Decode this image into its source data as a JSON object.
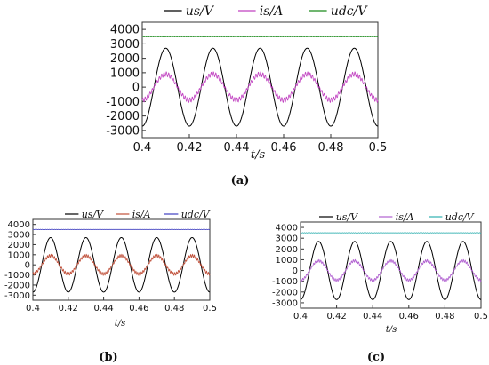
{
  "chart_data": [
    {
      "type": "line",
      "panel_label": "(a)",
      "xlabel": "t/s",
      "xlim": [
        0.4,
        0.5
      ],
      "ylim": [
        -3500,
        4500
      ],
      "x_ticks": [
        "0.4",
        "0.42",
        "0.44",
        "0.46",
        "0.48",
        "0.5"
      ],
      "y_ticks": [
        "-3000",
        "-2000",
        "-1000",
        "0",
        "1000",
        "2000",
        "3000",
        "4000"
      ],
      "legend": "top",
      "series": [
        {
          "name": "us/V",
          "color": "#000000",
          "kind": "sine",
          "amplitude": 2700,
          "frequency_hz": 50,
          "phase_deg": -90,
          "offset": 0
        },
        {
          "name": "is/A",
          "color": "#c040c0",
          "kind": "sine_ripple",
          "amplitude": 900,
          "frequency_hz": 50,
          "phase_deg": -90,
          "offset": 0,
          "ripple": 160
        },
        {
          "name": "udc/V",
          "color": "#1a8a1a",
          "kind": "dc",
          "offset": 3500,
          "ripple": 20
        }
      ]
    },
    {
      "type": "line",
      "panel_label": "(b)",
      "xlabel": "t/s",
      "xlim": [
        0.4,
        0.5
      ],
      "ylim": [
        -3500,
        4500
      ],
      "x_ticks": [
        "0.4",
        "0.42",
        "0.44",
        "0.46",
        "0.48",
        "0.5"
      ],
      "y_ticks": [
        "-3000",
        "-2000",
        "-1000",
        "0",
        "1000",
        "2000",
        "3000",
        "4000"
      ],
      "legend": "top",
      "series": [
        {
          "name": "us/V",
          "color": "#000000",
          "kind": "sine",
          "amplitude": 2700,
          "frequency_hz": 50,
          "phase_deg": -90,
          "offset": 0
        },
        {
          "name": "is/A",
          "color": "#c0503a",
          "kind": "sine_ripple",
          "amplitude": 900,
          "frequency_hz": 50,
          "phase_deg": -90,
          "offset": 0,
          "ripple": 150
        },
        {
          "name": "udc/V",
          "color": "#4040c0",
          "kind": "dc",
          "offset": 3500,
          "ripple": 20
        }
      ]
    },
    {
      "type": "line",
      "panel_label": "(c)",
      "xlabel": "t/s",
      "xlim": [
        0.4,
        0.5
      ],
      "ylim": [
        -3500,
        4500
      ],
      "x_ticks": [
        "0.4",
        "0.42",
        "0.44",
        "0.46",
        "0.48",
        "0.5"
      ],
      "y_ticks": [
        "-3000",
        "-2000",
        "-1000",
        "0",
        "1000",
        "2000",
        "3000",
        "4000"
      ],
      "legend": "top",
      "series": [
        {
          "name": "us/V",
          "color": "#000000",
          "kind": "sine",
          "amplitude": 2700,
          "frequency_hz": 50,
          "phase_deg": -90,
          "offset": 0
        },
        {
          "name": "is/A",
          "color": "#b060d0",
          "kind": "sine_ripple",
          "amplitude": 900,
          "frequency_hz": 50,
          "phase_deg": -90,
          "offset": 0,
          "ripple": 120
        },
        {
          "name": "udc/V",
          "color": "#30b0b0",
          "kind": "dc",
          "offset": 3500,
          "ripple": 20
        }
      ]
    }
  ]
}
